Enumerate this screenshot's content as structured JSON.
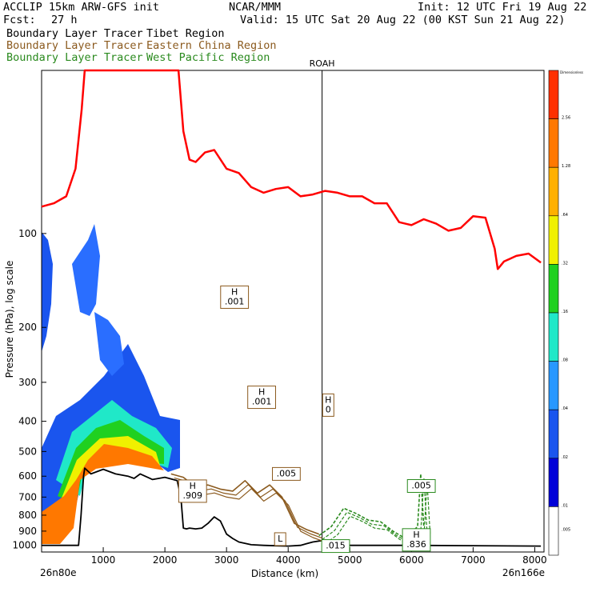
{
  "header": {
    "model": "ACCLIP 15km ARW-GFS init",
    "org": "NCAR/MMM",
    "init": "Init: 12 UTC Fri 19 Aug 22",
    "fcst_label": "Fcst:",
    "fcst_value": "27 h",
    "valid": "Valid: 15 UTC Sat 20 Aug 22 (00 KST Sun 21 Aug 22)"
  },
  "legend_lines": [
    {
      "tracer": "Boundary Layer Tracer",
      "region": "Tibet Region",
      "color": "#000000"
    },
    {
      "tracer": "Boundary Layer Tracer",
      "region": "Eastern China Region",
      "color": "#8b5a1e"
    },
    {
      "tracer": "Boundary Layer Tracer",
      "region": "West Pacific Region",
      "color": "#2a8a1e"
    }
  ],
  "colors": {
    "tropopause": "#ff0000",
    "tibet": "#000000",
    "eastern_china": "#8b5a1e",
    "west_pacific": "#2a8a1e"
  },
  "chart_data": {
    "type": "line",
    "title": "ACCLIP 15km ARW-GFS init",
    "xlabel": "Distance (km)",
    "ylabel": "Pressure (hPa), log scale",
    "x_range": [
      0,
      8150
    ],
    "y_range_hpa": [
      1050,
      30
    ],
    "x_ticks": [
      1000,
      2000,
      3000,
      4000,
      5000,
      6000,
      7000,
      8000
    ],
    "y_ticks": [
      100,
      200,
      300,
      400,
      500,
      600,
      700,
      800,
      900,
      1000
    ],
    "x_start_label": "26n80e",
    "x_end_label": "26n166e",
    "marker": {
      "label": "ROAH",
      "x_km": 4550
    },
    "colorbar": {
      "top_label": "Dimensionless",
      "labels": [
        "2.56",
        "1.28",
        ".64",
        ".32",
        ".16",
        ".08",
        ".04",
        ".02",
        ".01",
        ".005"
      ],
      "colors": [
        "#ff3000",
        "#ff7800",
        "#ffb000",
        "#f0f000",
        "#20d020",
        "#20e8c8",
        "#2898ff",
        "#1a55ee",
        "#0000d8",
        "#ffffff"
      ]
    },
    "series": [
      {
        "name": "Tropopause",
        "color": "#ff0000",
        "x": [
          0,
          200,
          400,
          550,
          650,
          700,
          2220,
          2300,
          2400,
          2500,
          2650,
          2800,
          3000,
          3200,
          3400,
          3600,
          3800,
          4000,
          4200,
          4400,
          4600,
          4800,
          5000,
          5200,
          5400,
          5600,
          5800,
          6000,
          6200,
          6400,
          6600,
          6800,
          7000,
          7200,
          7350,
          7400,
          7500,
          7700,
          7900,
          8100
        ],
        "p": [
          82,
          80,
          76,
          62,
          40,
          30,
          30,
          47,
          58,
          59,
          55,
          54,
          62,
          64,
          71,
          74,
          72,
          71,
          76,
          75,
          73,
          74,
          76,
          76,
          80,
          80,
          92,
          94,
          90,
          93,
          98,
          96,
          88,
          89,
          112,
          130,
          123,
          118,
          116,
          124
        ]
      },
      {
        "name": "Tibet terrain",
        "color": "#000000",
        "x": [
          0,
          600,
          640,
          680,
          700,
          800,
          1000,
          1200,
          1400,
          1500,
          1600,
          1800,
          2000,
          2200,
          2260,
          2300,
          2350,
          2400,
          2500,
          2600,
          2700,
          2800,
          2900,
          3000,
          3100,
          3200,
          3400,
          3600,
          3800,
          4000,
          4200,
          4400,
          4550,
          4700,
          5000,
          6000,
          7000,
          8100
        ],
        "p": [
          1000,
          1000,
          800,
          600,
          565,
          590,
          570,
          590,
          600,
          610,
          590,
          615,
          605,
          620,
          700,
          880,
          885,
          880,
          885,
          880,
          850,
          810,
          835,
          920,
          950,
          975,
          995,
          1000,
          1003,
          1005,
          1000,
          975,
          965,
          995,
          1000,
          1000,
          1002,
          1005
        ]
      },
      {
        "name": "Eastern China contour",
        "color": "#8b5a1e",
        "x": [
          2100,
          2300,
          2500,
          2700,
          2900,
          3100,
          3300,
          3500,
          3700,
          3900,
          4100,
          4300,
          4500
        ],
        "p": [
          590,
          605,
          650,
          640,
          660,
          670,
          620,
          680,
          640,
          700,
          850,
          890,
          920
        ]
      },
      {
        "name": "West Pacific contour",
        "color": "#2a8a1e",
        "x": [
          4500,
          4700,
          4900,
          5100,
          5300,
          5500,
          5700,
          5900,
          6100,
          6150,
          6200
        ],
        "p": [
          930,
          870,
          760,
          790,
          830,
          840,
          900,
          950,
          870,
          590,
          870
        ]
      }
    ],
    "labels": [
      {
        "text": "H",
        "value": ".001",
        "x_km": 3130,
        "p": 160,
        "group": "eastern_china"
      },
      {
        "text": "H",
        "value": ".001",
        "x_km": 3570,
        "p": 335,
        "group": "eastern_china"
      },
      {
        "text": "H",
        "value": "0",
        "x_km": 4650,
        "p": 355,
        "group": "eastern_china"
      },
      {
        "text": "",
        "value": ".005",
        "x_km": 3970,
        "p": 590,
        "group": "eastern_china"
      },
      {
        "text": "H",
        "value": ".909",
        "x_km": 2450,
        "p": 670,
        "group": "eastern_china"
      },
      {
        "text": "L",
        "value": "",
        "x_km": 3870,
        "p": 955,
        "group": "eastern_china"
      },
      {
        "text": "",
        "value": ".015",
        "x_km": 4770,
        "p": 1005,
        "group": "west_pacific"
      },
      {
        "text": "",
        "value": ".005",
        "x_km": 6160,
        "p": 645,
        "group": "west_pacific"
      },
      {
        "text": "H",
        "value": ".836",
        "x_km": 6080,
        "p": 960,
        "group": "west_pacific"
      }
    ]
  }
}
